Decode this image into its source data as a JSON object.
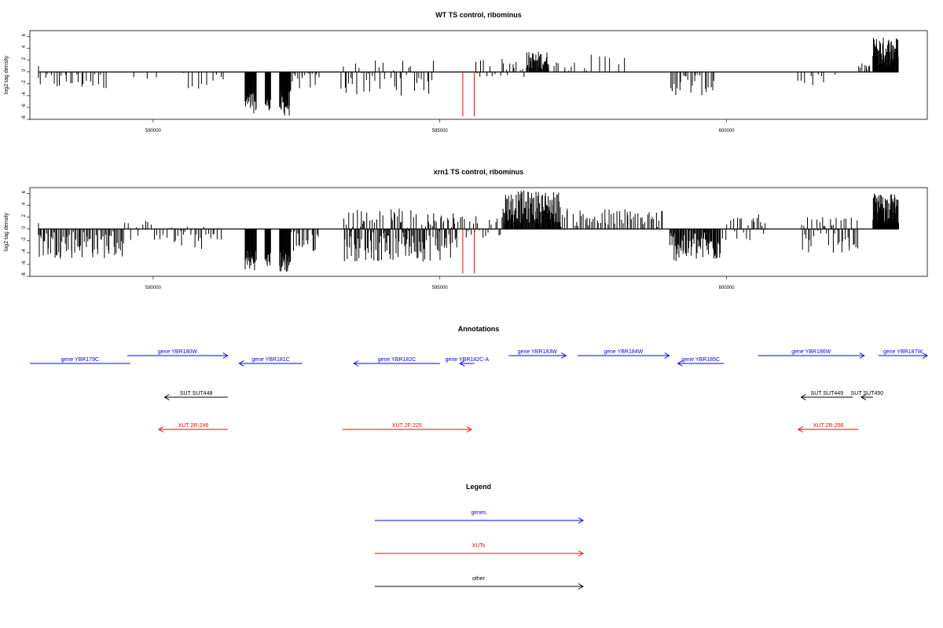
{
  "colors": {
    "genes": "#0000ff",
    "xuts": "#ff0000",
    "other": "#000000",
    "marker": "#ff0000",
    "bars": "#000000"
  },
  "chart_data": [
    {
      "type": "bar",
      "title": "WT TS control, ribominus",
      "ylabel": "log2 tag density",
      "ylim": [
        -8,
        7
      ],
      "yticks": [
        -8,
        -6,
        -4,
        -2,
        0,
        2,
        4,
        6
      ],
      "xlim": [
        587850,
        603500
      ],
      "xticks": [
        590000,
        595000,
        600000
      ],
      "region": [
        588000,
        603000
      ],
      "red_markers": [
        595400,
        595600
      ],
      "segments": [
        {
          "range": [
            588000,
            589200
          ],
          "n": 25,
          "lo": -3.0,
          "hi": 0
        },
        {
          "range": [
            589500,
            590200
          ],
          "n": 3,
          "lo": -1.5,
          "hi": 0
        },
        {
          "range": [
            590500,
            591300
          ],
          "n": 10,
          "lo": -2.8,
          "hi": 0
        },
        {
          "range": [
            591600,
            591800
          ],
          "n": 30,
          "lo": -7.0,
          "hi": -3.0
        },
        {
          "range": [
            591950,
            592050
          ],
          "n": 15,
          "lo": -6.5,
          "hi": -4.0
        },
        {
          "range": [
            592200,
            592400
          ],
          "n": 30,
          "lo": -7.5,
          "hi": -3.0
        },
        {
          "range": [
            592400,
            592900
          ],
          "n": 15,
          "lo": -3.0,
          "hi": 0
        },
        {
          "range": [
            593250,
            594900
          ],
          "n": 45,
          "lo": -4.0,
          "hi": 2.0
        },
        {
          "range": [
            595600,
            596500
          ],
          "n": 25,
          "lo": -1.0,
          "hi": 2.5
        },
        {
          "range": [
            596500,
            596900
          ],
          "n": 40,
          "lo": 0.5,
          "hi": 3.5
        },
        {
          "range": [
            596900,
            597600
          ],
          "n": 15,
          "lo": 0,
          "hi": 2.0
        },
        {
          "range": [
            597600,
            598300
          ],
          "n": 6,
          "lo": 0,
          "hi": 3.0
        },
        {
          "range": [
            599000,
            599800
          ],
          "n": 25,
          "lo": -4.0,
          "hi": 0
        },
        {
          "range": [
            601200,
            601900
          ],
          "n": 10,
          "lo": -2.5,
          "hi": 0
        },
        {
          "range": [
            602300,
            602500
          ],
          "n": 10,
          "lo": 0,
          "hi": 1.5
        },
        {
          "range": [
            602550,
            603000
          ],
          "n": 70,
          "lo": 1.0,
          "hi": 6.0
        }
      ]
    },
    {
      "type": "bar",
      "title": "xrn1 TS control, ribominus",
      "ylabel": "log2 tag density",
      "ylim": [
        -8,
        7
      ],
      "yticks": [
        -8,
        -6,
        -4,
        -2,
        0,
        2,
        4,
        6
      ],
      "xlim": [
        587850,
        603500
      ],
      "xticks": [
        590000,
        595000,
        600000
      ],
      "region": [
        588000,
        603000
      ],
      "red_markers": [
        595400,
        595600
      ],
      "segments": [
        {
          "range": [
            588000,
            589500
          ],
          "n": 70,
          "lo": -5.0,
          "hi": 0
        },
        {
          "range": [
            589500,
            590300
          ],
          "n": 15,
          "lo": -2.0,
          "hi": 1.5
        },
        {
          "range": [
            590300,
            591200
          ],
          "n": 25,
          "lo": -3.5,
          "hi": 0.5
        },
        {
          "range": [
            591600,
            591800
          ],
          "n": 30,
          "lo": -7.0,
          "hi": -3.0
        },
        {
          "range": [
            591950,
            592050
          ],
          "n": 15,
          "lo": -6.5,
          "hi": -4.0
        },
        {
          "range": [
            592200,
            592400
          ],
          "n": 30,
          "lo": -7.5,
          "hi": -3.0
        },
        {
          "range": [
            592400,
            592900
          ],
          "n": 20,
          "lo": -4.0,
          "hi": 0
        },
        {
          "range": [
            593300,
            595300
          ],
          "n": 150,
          "lo": -5.5,
          "hi": 3.5
        },
        {
          "range": [
            595300,
            596100
          ],
          "n": 30,
          "lo": -1.5,
          "hi": 2.5
        },
        {
          "range": [
            596100,
            597100
          ],
          "n": 110,
          "lo": 1.0,
          "hi": 6.5
        },
        {
          "range": [
            597100,
            598900
          ],
          "n": 60,
          "lo": 0,
          "hi": 3.5
        },
        {
          "range": [
            599000,
            599900
          ],
          "n": 80,
          "lo": -5.5,
          "hi": 0
        },
        {
          "range": [
            599900,
            600700
          ],
          "n": 25,
          "lo": -2.0,
          "hi": 2.5
        },
        {
          "range": [
            601300,
            602300
          ],
          "n": 50,
          "lo": -4.0,
          "hi": 2.0
        },
        {
          "range": [
            602550,
            603000
          ],
          "n": 80,
          "lo": 1.0,
          "hi": 6.0
        }
      ]
    }
  ],
  "annotations": {
    "title": "Annotations",
    "items": [
      {
        "label": "gene YBR179C",
        "cls": "genes",
        "start": 587850,
        "end": 589600,
        "dir": "none",
        "row": 0
      },
      {
        "label": "gene YBR180W",
        "cls": "genes",
        "start": 589550,
        "end": 591300,
        "dir": "right",
        "row": -1
      },
      {
        "label": "gene YBR181C",
        "cls": "genes",
        "start": 591500,
        "end": 592600,
        "dir": "left",
        "row": 0
      },
      {
        "label": "gene YBR182C",
        "cls": "genes",
        "start": 593500,
        "end": 595000,
        "dir": "left",
        "row": 0
      },
      {
        "label": "gene YBR182C-A",
        "cls": "genes",
        "start": 595350,
        "end": 595600,
        "dir": "left",
        "row": 0
      },
      {
        "label": "gene YBR183W",
        "cls": "genes",
        "start": 596200,
        "end": 597200,
        "dir": "right",
        "row": -1
      },
      {
        "label": "gene YBR184W",
        "cls": "genes",
        "start": 597400,
        "end": 599000,
        "dir": "right",
        "row": -1
      },
      {
        "label": "gene YBR185C",
        "cls": "genes",
        "start": 599150,
        "end": 599950,
        "dir": "left",
        "row": 0
      },
      {
        "label": "gene YBR186W",
        "cls": "genes",
        "start": 600550,
        "end": 602400,
        "dir": "right",
        "row": -1
      },
      {
        "label": "gene YBR187W",
        "cls": "genes",
        "start": 602650,
        "end": 603500,
        "dir": "right",
        "row": -1
      },
      {
        "label": "SUT SUT448",
        "cls": "other",
        "start": 590200,
        "end": 591300,
        "dir": "left",
        "row": 1
      },
      {
        "label": "SUT SUT449",
        "cls": "other",
        "start": 601300,
        "end": 602200,
        "dir": "left",
        "row": 1
      },
      {
        "label": "SUT SUT450",
        "cls": "other",
        "start": 602350,
        "end": 602550,
        "dir": "left",
        "row": 1
      },
      {
        "label": "XUT 2R-246",
        "cls": "xuts",
        "start": 590100,
        "end": 591300,
        "dir": "left",
        "row": 2
      },
      {
        "label": "XUT 2F-225",
        "cls": "xuts",
        "start": 593300,
        "end": 595550,
        "dir": "right",
        "row": 2
      },
      {
        "label": "XUT 2R-256",
        "cls": "xuts",
        "start": 601250,
        "end": 602300,
        "dir": "left",
        "row": 2
      }
    ]
  },
  "legend": {
    "title": "Legend",
    "items": [
      {
        "label": "genes",
        "cls": "genes"
      },
      {
        "label": "XUTs",
        "cls": "xuts"
      },
      {
        "label": "other",
        "cls": "other"
      }
    ]
  }
}
